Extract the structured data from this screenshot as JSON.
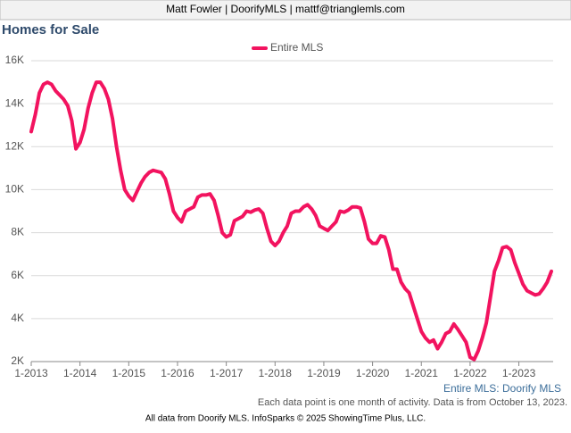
{
  "header": {
    "text": "Matt Fowler | DoorifyMLS | mattf@trianglemls.com"
  },
  "chart_data": {
    "type": "line",
    "title": "Homes for Sale",
    "categories": [
      "1-2013",
      "2-2013",
      "3-2013",
      "4-2013",
      "5-2013",
      "6-2013",
      "7-2013",
      "8-2013",
      "9-2013",
      "10-2013",
      "11-2013",
      "12-2013",
      "1-2014",
      "2-2014",
      "3-2014",
      "4-2014",
      "5-2014",
      "6-2014",
      "7-2014",
      "8-2014",
      "9-2014",
      "10-2014",
      "11-2014",
      "12-2014",
      "1-2015",
      "2-2015",
      "3-2015",
      "4-2015",
      "5-2015",
      "6-2015",
      "7-2015",
      "8-2015",
      "9-2015",
      "10-2015",
      "11-2015",
      "12-2015",
      "1-2016",
      "2-2016",
      "3-2016",
      "4-2016",
      "5-2016",
      "6-2016",
      "7-2016",
      "8-2016",
      "9-2016",
      "10-2016",
      "11-2016",
      "12-2016",
      "1-2017",
      "2-2017",
      "3-2017",
      "4-2017",
      "5-2017",
      "6-2017",
      "7-2017",
      "8-2017",
      "9-2017",
      "10-2017",
      "11-2017",
      "12-2017",
      "1-2018",
      "2-2018",
      "3-2018",
      "4-2018",
      "5-2018",
      "6-2018",
      "7-2018",
      "8-2018",
      "9-2018",
      "10-2018",
      "11-2018",
      "12-2018",
      "1-2019",
      "2-2019",
      "3-2019",
      "4-2019",
      "5-2019",
      "6-2019",
      "7-2019",
      "8-2019",
      "9-2019",
      "10-2019",
      "11-2019",
      "12-2019",
      "1-2020",
      "2-2020",
      "3-2020",
      "4-2020",
      "5-2020",
      "6-2020",
      "7-2020",
      "8-2020",
      "9-2020",
      "10-2020",
      "11-2020",
      "12-2020",
      "1-2021",
      "2-2021",
      "3-2021",
      "4-2021",
      "5-2021",
      "6-2021",
      "7-2021",
      "8-2021",
      "9-2021",
      "10-2021",
      "11-2021",
      "12-2021",
      "1-2022",
      "2-2022",
      "3-2022",
      "4-2022",
      "5-2022",
      "6-2022",
      "7-2022",
      "8-2022",
      "9-2022",
      "10-2022",
      "11-2022",
      "12-2022",
      "1-2023",
      "2-2023",
      "3-2023",
      "4-2023",
      "5-2023",
      "6-2023",
      "7-2023",
      "8-2023",
      "9-2023"
    ],
    "series": [
      {
        "name": "Entire MLS",
        "color": "#f2135f",
        "values": [
          12700,
          13500,
          14500,
          14900,
          15000,
          14900,
          14600,
          14400,
          14200,
          13900,
          13200,
          11900,
          12200,
          12800,
          13800,
          14500,
          15000,
          15000,
          14700,
          14200,
          13300,
          12000,
          10900,
          10000,
          9700,
          9500,
          9900,
          10300,
          10600,
          10800,
          10900,
          10850,
          10800,
          10500,
          9800,
          9000,
          8700,
          8500,
          9000,
          9100,
          9200,
          9650,
          9750,
          9750,
          9800,
          9500,
          8800,
          8000,
          7800,
          7900,
          8550,
          8650,
          8750,
          9000,
          8950,
          9050,
          9100,
          8900,
          8200,
          7600,
          7400,
          7600,
          8000,
          8300,
          8900,
          9000,
          9000,
          9200,
          9300,
          9100,
          8800,
          8300,
          8200,
          8100,
          8300,
          8500,
          9000,
          8950,
          9050,
          9200,
          9200,
          9150,
          8500,
          7700,
          7500,
          7500,
          7850,
          7800,
          7200,
          6300,
          6300,
          5700,
          5400,
          5200,
          4600,
          4000,
          3400,
          3100,
          2900,
          3000,
          2600,
          2900,
          3300,
          3400,
          3750,
          3500,
          3200,
          2900,
          2200,
          2100,
          2500,
          3100,
          3800,
          5000,
          6200,
          6700,
          7300,
          7350,
          7200,
          6600,
          6100,
          5600,
          5300,
          5200,
          5100,
          5150,
          5400,
          5700,
          6200
        ]
      }
    ],
    "ylim": [
      2000,
      16000
    ],
    "yticks": [
      {
        "value": 2000,
        "label": "2K"
      },
      {
        "value": 4000,
        "label": "4K"
      },
      {
        "value": 6000,
        "label": "6K"
      },
      {
        "value": 8000,
        "label": "8K"
      },
      {
        "value": 10000,
        "label": "10K"
      },
      {
        "value": 12000,
        "label": "12K"
      },
      {
        "value": 14000,
        "label": "14K"
      },
      {
        "value": 16000,
        "label": "16K"
      }
    ],
    "grid": true,
    "legend": "top",
    "source": "Entire MLS: Doorify MLS",
    "note": "Each data point is one month of activity. Data is from October 13, 2023."
  },
  "footer": {
    "text": "All data from Doorify MLS. InfoSparks © 2025 ShowingTime Plus, LLC."
  }
}
